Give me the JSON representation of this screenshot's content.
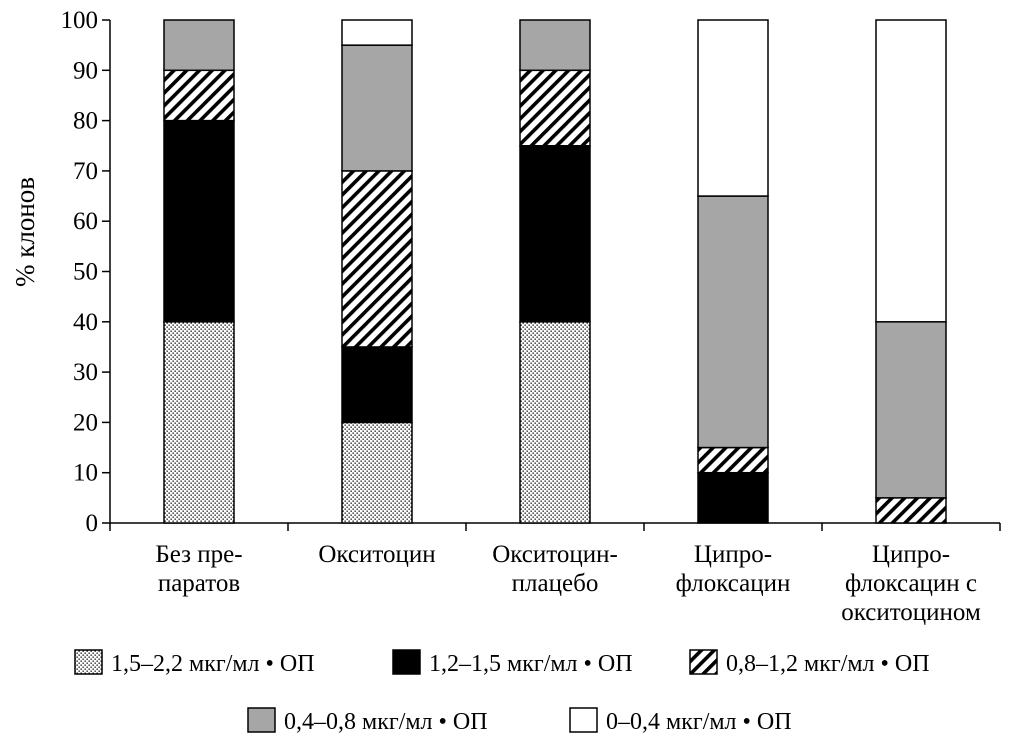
{
  "chart_data": {
    "type": "bar",
    "stacked": true,
    "ylabel": "% клонов",
    "xlabel": "",
    "ylim": [
      0,
      100
    ],
    "yticks": [
      0,
      10,
      20,
      30,
      40,
      50,
      60,
      70,
      80,
      90,
      100
    ],
    "grid": false,
    "legend_position": "bottom",
    "categories": [
      [
        "Без пре-",
        "паратов"
      ],
      [
        "Окситоцин"
      ],
      [
        "Окситоцин-",
        "плацебо"
      ],
      [
        "Ципро-",
        "флоксацин"
      ],
      [
        "Ципро-",
        "флоксацин с",
        "окситоцином"
      ]
    ],
    "series": [
      {
        "name": "1,5–2,2 мкг/мл • ОП",
        "pattern": "dots",
        "color": "#ffffff",
        "values": [
          40,
          20,
          40,
          0,
          0
        ]
      },
      {
        "name": "1,2–1,5 мкг/мл • ОП",
        "pattern": "solid",
        "color": "#000000",
        "values": [
          40,
          15,
          35,
          10,
          0
        ]
      },
      {
        "name": "0,8–1,2 мкг/мл • ОП",
        "pattern": "hatch",
        "color": "#ffffff",
        "values": [
          10,
          35,
          15,
          5,
          5
        ]
      },
      {
        "name": "0,4–0,8 мкг/мл • ОП",
        "pattern": "solid",
        "color": "#a6a6a6",
        "values": [
          10,
          25,
          10,
          50,
          35
        ]
      },
      {
        "name": "0–0,4 мкг/мл • ОП",
        "pattern": "solid",
        "color": "#ffffff",
        "values": [
          0,
          5,
          0,
          35,
          60
        ]
      }
    ]
  }
}
